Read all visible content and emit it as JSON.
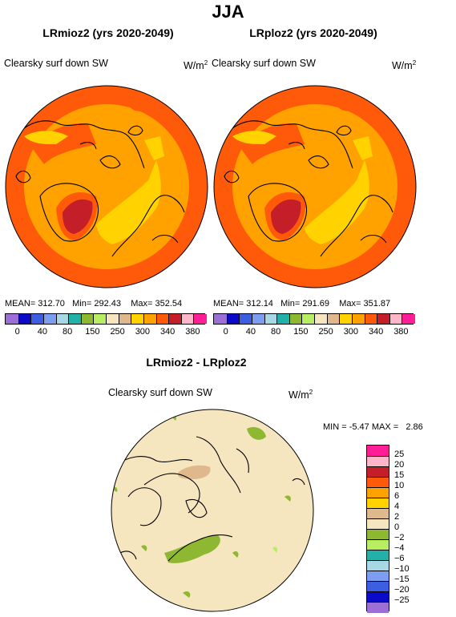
{
  "title": "JJA",
  "panels": [
    {
      "title": "LRmioz2 (yrs 2020-2049)",
      "field": "Clearsky surf down SW",
      "units": "W/m",
      "units_sup": "2",
      "stats": {
        "mean_label": "MEAN=",
        "mean": "312.70",
        "min_label": "Min=",
        "min": "292.43",
        "max_label": "Max=",
        "max": "352.54"
      }
    },
    {
      "title": "LRploz2 (yrs 2020-2049)",
      "field": "Clearsky surf down SW",
      "units": "W/m",
      "units_sup": "2",
      "stats": {
        "mean_label": "MEAN=",
        "mean": "312.14",
        "min_label": "Min=",
        "min": "291.69",
        "max_label": "Max=",
        "max": "351.87"
      }
    }
  ],
  "top_colorbar": {
    "colors": [
      "#9b6fd6",
      "#0a0ac8",
      "#3b5fe0",
      "#7b9ef0",
      "#a7d8e6",
      "#22b0a8",
      "#8fb832",
      "#b8ee62",
      "#f5e6c0",
      "#dfb98c",
      "#ffd200",
      "#ffa200",
      "#ff5a0a",
      "#c41e28",
      "#ffb6c8",
      "#ff1e96"
    ],
    "tick_labels": [
      "0",
      "40",
      "80",
      "150",
      "250",
      "300",
      "340",
      "380"
    ]
  },
  "diff_panel": {
    "title": "LRmioz2 - LRploz2",
    "field": "Clearsky surf down SW",
    "units": "W/m",
    "units_sup": "2",
    "min_label": "MIN =",
    "min": "-5.47",
    "max_label": "MAX =",
    "max": "2.86"
  },
  "diff_colorbar": {
    "colors_top_to_bottom": [
      "#ff1e96",
      "#ffb6c8",
      "#c41e28",
      "#ff5a0a",
      "#ffa200",
      "#ffd200",
      "#dfb98c",
      "#f5e6c0",
      "#8fb832",
      "#b8ee62",
      "#22b0a8",
      "#a7d8e6",
      "#7b9ef0",
      "#3b5fe0",
      "#0a0ac8",
      "#9b6fd6"
    ],
    "labels": [
      "25",
      "20",
      "15",
      "10",
      "6",
      "4",
      "2",
      "0",
      "−2",
      "−4",
      "−6",
      "−10",
      "−15",
      "−20",
      "−25"
    ]
  }
}
